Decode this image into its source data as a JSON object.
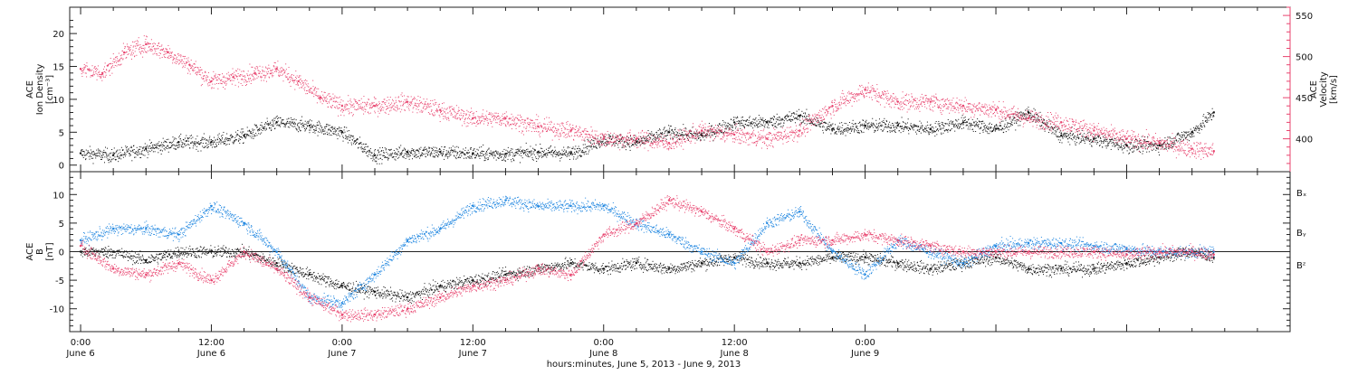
{
  "colors": {
    "black": "#111111",
    "pink": "#e8436e",
    "blue": "#1f86e0",
    "axis": "#222222"
  },
  "chart_data": [
    {
      "type": "scatter",
      "panel": "top",
      "left_axis": {
        "label_lines": [
          "ACE",
          "Ion Density",
          "[cm⁻³]"
        ],
        "ylim": [
          -1,
          24
        ],
        "ticks": [
          0,
          5,
          10,
          15,
          20
        ],
        "tick_labels": [
          "0",
          "5",
          "10",
          "15",
          "20"
        ]
      },
      "right_axis": {
        "label_lines": [
          "ACE",
          "Velocity",
          "[km/s]"
        ],
        "ylim": [
          360,
          560
        ],
        "ticks": [
          400,
          450,
          500,
          550
        ],
        "tick_labels": [
          "400",
          "450",
          "500",
          "550"
        ]
      },
      "series": [
        {
          "axis": "left",
          "color": "#111111",
          "x": [
            0,
            3,
            6,
            9,
            12,
            15,
            18,
            21,
            24,
            27,
            30,
            33,
            36,
            39,
            42,
            45,
            48,
            51,
            54,
            57,
            60,
            63,
            66,
            69,
            72,
            75,
            78,
            81,
            84,
            87,
            90,
            93,
            96,
            99,
            102,
            104
          ],
          "y": [
            1.8,
            1.5,
            2.5,
            3.5,
            3.5,
            4.5,
            6.5,
            6.0,
            5.0,
            1.5,
            2.0,
            2.0,
            1.8,
            1.7,
            2.0,
            1.8,
            4.0,
            3.5,
            5.0,
            4.5,
            6.5,
            6.5,
            7.5,
            5.5,
            6.0,
            6.0,
            5.5,
            6.5,
            5.5,
            8.0,
            4.5,
            4.0,
            3.0,
            3.0,
            5.0,
            8.0
          ]
        },
        {
          "axis": "right",
          "color": "#e8436e",
          "x": [
            0,
            2,
            4,
            6,
            8,
            10,
            12,
            14,
            16,
            18,
            20,
            22,
            24,
            27,
            30,
            33,
            36,
            39,
            42,
            45,
            48,
            51,
            54,
            57,
            60,
            63,
            66,
            69,
            72,
            75,
            78,
            81,
            84,
            87,
            90,
            93,
            96,
            99,
            102,
            104
          ],
          "y": [
            485,
            480,
            505,
            515,
            505,
            490,
            470,
            475,
            480,
            485,
            470,
            450,
            440,
            440,
            445,
            435,
            425,
            425,
            415,
            410,
            400,
            400,
            395,
            410,
            405,
            400,
            410,
            440,
            460,
            445,
            445,
            440,
            435,
            425,
            420,
            410,
            400,
            395,
            388,
            385
          ]
        }
      ]
    },
    {
      "type": "scatter",
      "panel": "bottom",
      "left_axis": {
        "label_lines": [
          "ACE",
          "B",
          "[nT]"
        ],
        "ylim": [
          -14,
          14
        ],
        "ticks": [
          -10,
          -5,
          0,
          5,
          10
        ],
        "tick_labels": [
          "-10",
          "-5",
          "0",
          "5",
          "10"
        ]
      },
      "zero_line": 0,
      "series": [
        {
          "name": "Bₓ",
          "color": "#111111",
          "x": [
            0,
            3,
            6,
            9,
            12,
            15,
            18,
            21,
            24,
            27,
            30,
            33,
            36,
            39,
            42,
            45,
            48,
            51,
            54,
            57,
            60,
            63,
            66,
            69,
            72,
            75,
            78,
            81,
            84,
            87,
            90,
            93,
            96,
            99,
            102,
            104
          ],
          "y": [
            0,
            0,
            -1.5,
            0,
            0,
            0,
            -2,
            -4,
            -6,
            -7,
            -8,
            -6,
            -5,
            -4,
            -3,
            -2,
            -3,
            -2,
            -3,
            -2,
            -1,
            -2,
            -2,
            -1,
            -1,
            -2,
            -3,
            -2,
            -1,
            -3,
            -3,
            -3,
            -2,
            -1,
            0,
            -1
          ]
        },
        {
          "name": "Bᵧ",
          "color": "#1f86e0",
          "x": [
            0,
            3,
            6,
            9,
            12,
            15,
            18,
            21,
            24,
            27,
            30,
            33,
            36,
            39,
            42,
            45,
            48,
            51,
            54,
            57,
            60,
            63,
            66,
            69,
            72,
            75,
            78,
            81,
            84,
            87,
            90,
            93,
            96,
            99,
            102,
            104
          ],
          "y": [
            2,
            4,
            4,
            3,
            8,
            5,
            0,
            -8,
            -9,
            -4,
            2,
            4,
            8,
            9,
            8,
            8,
            8,
            5,
            3,
            0,
            -2,
            5,
            7,
            0,
            -4,
            2,
            0,
            -2,
            1,
            1.5,
            1.5,
            1.0,
            0.5,
            0,
            0,
            0
          ]
        },
        {
          "name": "Bᶻ",
          "color": "#e8436e",
          "x": [
            0,
            3,
            6,
            9,
            12,
            15,
            18,
            21,
            24,
            27,
            30,
            33,
            36,
            39,
            42,
            45,
            48,
            51,
            54,
            57,
            60,
            63,
            66,
            69,
            72,
            75,
            78,
            81,
            84,
            87,
            90,
            93,
            96,
            99,
            102,
            104
          ],
          "y": [
            1,
            -3,
            -4,
            -2,
            -5,
            0,
            -3,
            -8,
            -11,
            -11,
            -10,
            -8,
            -6,
            -5,
            -3,
            -4,
            3,
            5,
            9,
            7,
            4,
            0,
            2,
            2,
            3,
            2,
            1,
            0,
            0,
            0,
            0,
            0,
            -0.5,
            0,
            0,
            -0.5
          ]
        }
      ],
      "legend": {
        "placement": "right",
        "entries": [
          {
            "name": "Bₓ",
            "color": "#111111"
          },
          {
            "name": "Bᵧ",
            "color": "#1f86e0"
          },
          {
            "name": "Bᶻ",
            "color": "#e8436e"
          }
        ]
      }
    }
  ],
  "x_axis": {
    "range_hours": [
      -1,
      111
    ],
    "major_ticks": [
      0,
      12,
      24,
      36,
      48,
      60,
      72,
      84,
      96
    ],
    "tick_labels": [
      {
        "time": "0:00",
        "date": "June 6"
      },
      {
        "time": "12:00",
        "date": "June 6"
      },
      {
        "time": "0:00",
        "date": "June 7"
      },
      {
        "time": "12:00",
        "date": "June 7"
      },
      {
        "time": "0:00",
        "date": "June 8"
      },
      {
        "time": "12:00",
        "date": "June 8"
      },
      {
        "time": "0:00",
        "date": "June 9"
      }
    ],
    "label": "hours:minutes, June  5, 2013 - June  9, 2013"
  }
}
